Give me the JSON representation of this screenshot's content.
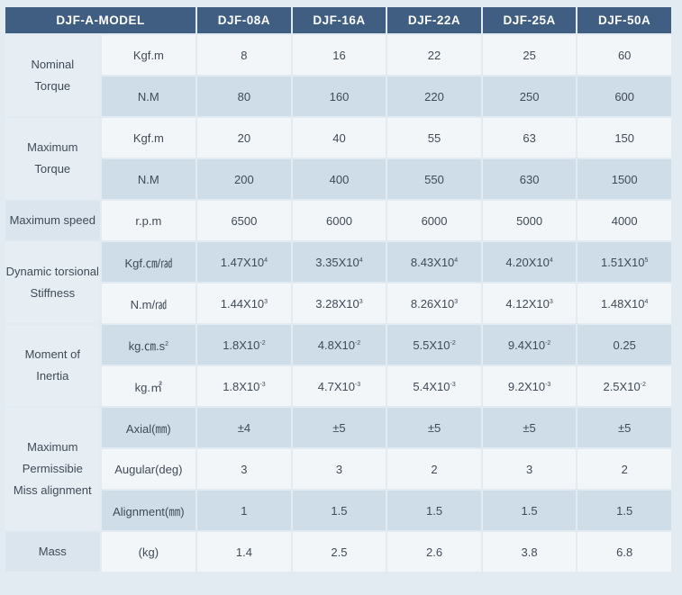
{
  "header": {
    "model_label": "DJF-A-MODEL",
    "models": [
      "DJF-08A",
      "DJF-16A",
      "DJF-22A",
      "DJF-25A",
      "DJF-50A"
    ]
  },
  "groups": [
    {
      "name_lines": [
        "Nominal",
        "Torque"
      ],
      "rows": [
        {
          "unit": "Kgf.m",
          "values": [
            "8",
            "16",
            "22",
            "25",
            "60"
          ]
        },
        {
          "unit": "N.M",
          "values": [
            "80",
            "160",
            "220",
            "250",
            "600"
          ]
        }
      ]
    },
    {
      "name_lines": [
        "Maximum",
        "Torque"
      ],
      "rows": [
        {
          "unit": "Kgf.m",
          "values": [
            "20",
            "40",
            "55",
            "63",
            "150"
          ]
        },
        {
          "unit": "N.M",
          "values": [
            "200",
            "400",
            "550",
            "630",
            "1500"
          ]
        }
      ]
    },
    {
      "name_lines": [
        "Maximum speed"
      ],
      "rows": [
        {
          "unit": "r.p.m",
          "values": [
            "6500",
            "6000",
            "6000",
            "5000",
            "4000"
          ]
        }
      ]
    },
    {
      "name_lines": [
        "Dynamic torsional",
        "Stiffness"
      ],
      "rows": [
        {
          "unit": "Kgf.㎝/㎭",
          "values": [
            {
              "base": "1.47X10",
              "exp": "4"
            },
            {
              "base": "3.35X10",
              "exp": "4"
            },
            {
              "base": "8.43X10",
              "exp": "4"
            },
            {
              "base": "4.20X10",
              "exp": "4"
            },
            {
              "base": "1.51X10",
              "exp": "5"
            }
          ]
        },
        {
          "unit": "N.m/㎭",
          "values": [
            {
              "base": "1.44X10",
              "exp": "3"
            },
            {
              "base": "3.28X10",
              "exp": "3"
            },
            {
              "base": "8.26X10",
              "exp": "3"
            },
            {
              "base": "4.12X10",
              "exp": "3"
            },
            {
              "base": "1.48X10",
              "exp": "4"
            }
          ]
        }
      ]
    },
    {
      "name_lines": [
        "Moment of",
        "Inertia"
      ],
      "rows": [
        {
          "unit_base": "kg.㎝.s",
          "unit_exp": "2",
          "values": [
            {
              "base": "1.8X10",
              "exp": "-2"
            },
            {
              "base": "4.8X10",
              "exp": "-2"
            },
            {
              "base": "5.5X10",
              "exp": "-2"
            },
            {
              "base": "9.4X10",
              "exp": "-2"
            },
            "0.25"
          ]
        },
        {
          "unit_base": "kg.㎡",
          "unit_exp": "",
          "values": [
            {
              "base": "1.8X10",
              "exp": "-3"
            },
            {
              "base": "4.7X10",
              "exp": "-3"
            },
            {
              "base": "5.4X10",
              "exp": "-3"
            },
            {
              "base": "9.2X10",
              "exp": "-3"
            },
            {
              "base": "2.5X10",
              "exp": "-2"
            }
          ]
        }
      ]
    },
    {
      "name_lines": [
        "Maximum",
        "Permissibie",
        "Miss alignment"
      ],
      "rows": [
        {
          "unit": "Axial(㎜)",
          "values": [
            "±4",
            "±5",
            "±5",
            "±5",
            "±5"
          ]
        },
        {
          "unit": "Augular(deg)",
          "values": [
            "3",
            "3",
            "2",
            "3",
            "2"
          ]
        },
        {
          "unit": "Alignment(㎜)",
          "values": [
            "1",
            "1.5",
            "1.5",
            "1.5",
            "1.5"
          ]
        }
      ]
    },
    {
      "name_lines": [
        "Mass"
      ],
      "rows": [
        {
          "unit": "(kg)",
          "values": [
            "1.4",
            "2.5",
            "2.6",
            "3.8",
            "6.8"
          ]
        }
      ]
    }
  ],
  "colors": {
    "header_bg": "#3f5e81",
    "row_light": "#f3f6f9",
    "row_dark": "#cfdde9",
    "text": "#3f4b57"
  }
}
